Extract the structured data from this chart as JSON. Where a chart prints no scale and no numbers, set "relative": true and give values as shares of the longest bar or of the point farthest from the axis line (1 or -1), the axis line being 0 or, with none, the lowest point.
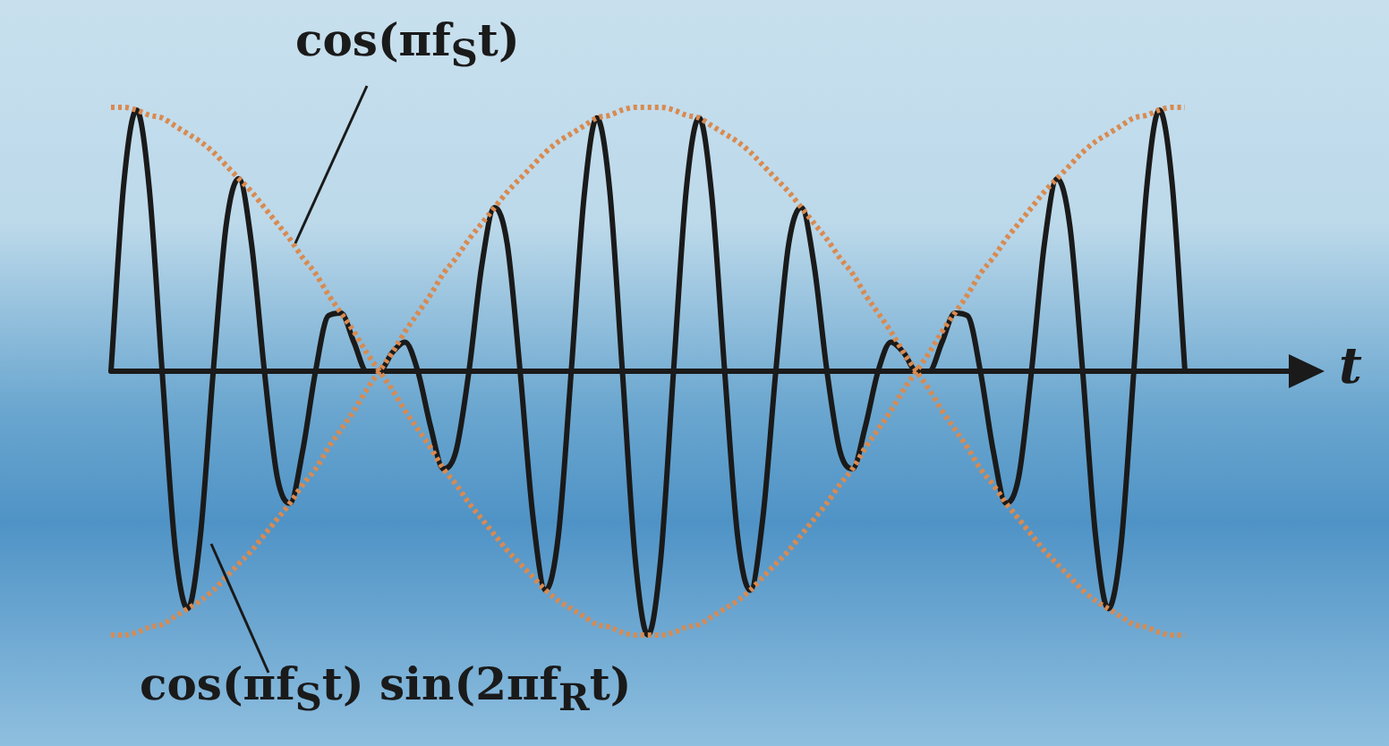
{
  "chart_data": {
    "type": "line",
    "relative": true,
    "xlabel": "t",
    "marker": "none",
    "categories": [
      null,
      null,
      null,
      null,
      null,
      null,
      null,
      null,
      null,
      null,
      null,
      null,
      null,
      null,
      null,
      null,
      null,
      null,
      null,
      null,
      null,
      null,
      null,
      null,
      null,
      null,
      null,
      null,
      null,
      null,
      null,
      null,
      null,
      null,
      null,
      null,
      null,
      null,
      null,
      null,
      null,
      null,
      null,
      null,
      null,
      null,
      null,
      null,
      null,
      null,
      null,
      null,
      null,
      null,
      null,
      null,
      null,
      null,
      null,
      null,
      null,
      null,
      null,
      null,
      null,
      null,
      null,
      null,
      null,
      null,
      null,
      null,
      null,
      null,
      null,
      null,
      null,
      null,
      null,
      null,
      null,
      null,
      null,
      null,
      null
    ],
    "series": [
      {
        "color": "#d98a50",
        "line_style": "dotted",
        "values": [
          1,
          1,
          0.99,
          0.97,
          0.96,
          0.93,
          0.9,
          0.87,
          0.83,
          0.78,
          0.73,
          0.68,
          0.62,
          0.56,
          0.5,
          0.43,
          0.37,
          0.29,
          0.22,
          0.15,
          0.07,
          0,
          -0.07,
          -0.15,
          -0.22,
          -0.29,
          -0.37,
          -0.43,
          -0.5,
          -0.56,
          -0.62,
          -0.68,
          -0.73,
          -0.78,
          -0.83,
          -0.87,
          -0.9,
          -0.93,
          -0.96,
          -0.97,
          -0.99,
          -1,
          -1,
          -1,
          -0.99,
          -0.97,
          -0.96,
          -0.93,
          -0.9,
          -0.87,
          -0.83,
          -0.78,
          -0.73,
          -0.68,
          -0.62,
          -0.56,
          -0.5,
          -0.43,
          -0.37,
          -0.29,
          -0.22,
          -0.15,
          -0.07,
          0,
          0.07,
          0.15,
          0.22,
          0.29,
          0.37,
          0.43,
          0.5,
          0.56,
          0.62,
          0.68,
          0.73,
          0.78,
          0.83,
          0.87,
          0.9,
          0.93,
          0.96,
          0.97,
          0.99,
          1,
          1
        ]
      },
      {
        "color": "#d98a50",
        "line_style": "dotted",
        "values": [
          -1,
          -1,
          -0.99,
          -0.97,
          -0.96,
          -0.93,
          -0.9,
          -0.87,
          -0.83,
          -0.78,
          -0.73,
          -0.68,
          -0.62,
          -0.56,
          -0.5,
          -0.43,
          -0.37,
          -0.29,
          -0.22,
          -0.15,
          -0.07,
          0,
          0.07,
          0.15,
          0.22,
          0.29,
          0.37,
          0.43,
          0.5,
          0.56,
          0.62,
          0.68,
          0.73,
          0.78,
          0.83,
          0.87,
          0.9,
          0.93,
          0.96,
          0.97,
          0.99,
          1,
          1,
          1,
          0.99,
          0.97,
          0.96,
          0.93,
          0.9,
          0.87,
          0.83,
          0.78,
          0.73,
          0.68,
          0.62,
          0.56,
          0.5,
          0.43,
          0.37,
          0.29,
          0.22,
          0.15,
          0.07,
          0,
          -0.07,
          -0.15,
          -0.22,
          -0.29,
          -0.37,
          -0.43,
          -0.5,
          -0.56,
          -0.62,
          -0.68,
          -0.73,
          -0.78,
          -0.83,
          -0.87,
          -0.9,
          -0.93,
          -0.96,
          -0.97,
          -0.99,
          -1,
          -1
        ]
      },
      {
        "color": "#1a1a1a",
        "line_style": "solid",
        "values": [
          0,
          0.71,
          0.99,
          0.69,
          0,
          -0.66,
          -0.9,
          -0.62,
          0,
          0.55,
          0.73,
          0.48,
          0,
          -0.4,
          -0.5,
          -0.3,
          0,
          0.21,
          0.22,
          0.11,
          0,
          0,
          0.07,
          0.11,
          0,
          -0.21,
          -0.37,
          -0.3,
          0,
          0.4,
          0.62,
          0.48,
          0,
          -0.55,
          -0.83,
          -0.62,
          0,
          0.66,
          0.96,
          0.69,
          0,
          -0.71,
          -1,
          -0.71,
          0,
          0.69,
          0.96,
          0.66,
          0,
          -0.62,
          -0.83,
          -0.55,
          0,
          0.48,
          0.62,
          0.4,
          0,
          -0.3,
          -0.37,
          -0.21,
          0,
          0.11,
          0.07,
          0,
          0,
          0.11,
          0.22,
          0.21,
          0,
          -0.3,
          -0.5,
          -0.4,
          0,
          0.48,
          0.73,
          0.55,
          0,
          -0.62,
          -0.9,
          -0.66,
          0,
          0.69,
          0.99,
          0.71,
          0
        ]
      }
    ],
    "annotations": [
      "cos(πf$_{S}$t)",
      "cos(πf$_{S}$t) sin(2πf$_{R}$t)"
    ]
  }
}
